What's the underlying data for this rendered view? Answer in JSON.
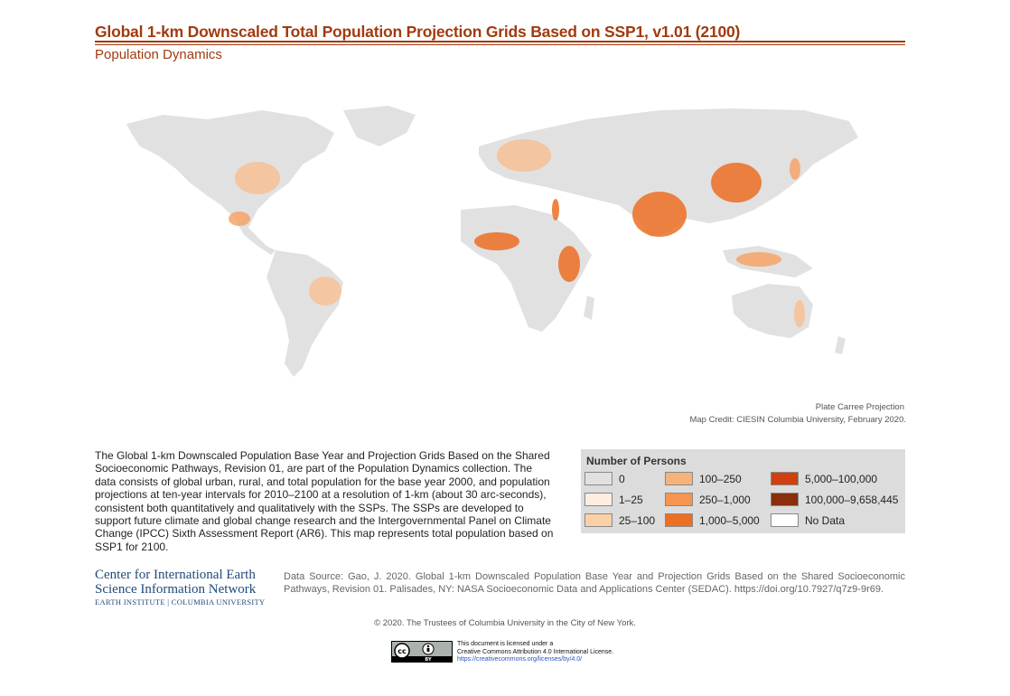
{
  "header": {
    "title": "Global 1-km Downscaled Total Population Projection Grids Based on SSP1, v1.01 (2100)",
    "subtitle": "Population Dynamics"
  },
  "map": {
    "projection": "Plate Carree Projection",
    "credit": "Map Credit: CIESIN Columbia University, February 2020.",
    "colors": {
      "land": "#e1e1e1",
      "low": "#fde6d3",
      "mid": "#f6a56a",
      "high": "#e8692c"
    }
  },
  "description": "The Global 1-km Downscaled Population Base Year and Projection Grids Based on the Shared Socioeconomic Pathways, Revision 01, are part of the Population Dynamics collection. The data consists of global urban, rural, and total population for the base year 2000, and population projections at ten-year intervals for 2010–2100 at a resolution of 1-km (about 30 arc-seconds), consistent both quantitatively and qualitatively with the SSPs. The SSPs are developed to support future climate and global change research and the Intergovernmental Panel on Climate Change (IPCC) Sixth Assessment Report (AR6). This map represents total population based on SSP1 for 2100.",
  "legend": {
    "title": "Number of Persons",
    "items": [
      {
        "label": "0",
        "color": "#e1e1e1"
      },
      {
        "label": "1–25",
        "color": "#fdeee1"
      },
      {
        "label": "25–100",
        "color": "#fbd0a6"
      },
      {
        "label": "100–250",
        "color": "#f7b27a"
      },
      {
        "label": "250–1,000",
        "color": "#f5954f"
      },
      {
        "label": "1,000–5,000",
        "color": "#ec6f24"
      },
      {
        "label": "5,000–100,000",
        "color": "#d0400e"
      },
      {
        "label": "100,000–9,658,445",
        "color": "#8a2e0b"
      },
      {
        "label": "No Data",
        "color": "#ffffff"
      }
    ]
  },
  "footer": {
    "org_line1": "Center for International Earth",
    "org_line2": "Science Information Network",
    "org_line3": "EARTH INSTITUTE | COLUMBIA UNIVERSITY",
    "data_source": "Data Source: Gao, J. 2020. Global 1-km Downscaled Population Base Year and Projection Grids Based on the Shared Socioeconomic Pathways, Revision 01. Palisades, NY: NASA Socioeconomic Data and Applications Center (SEDAC). https://doi.org/10.7927/q7z9-9r69.",
    "copyright": "© 2020. The Trustees of Columbia University in the City of New York.",
    "license_line1": "This document is licensed under a",
    "license_line2": "Creative Commons Attribution 4.0 International License.",
    "license_link": "https://creativecommons.org/licenses/by/4.0/",
    "cc_label": "cc",
    "by_label": "BY"
  }
}
